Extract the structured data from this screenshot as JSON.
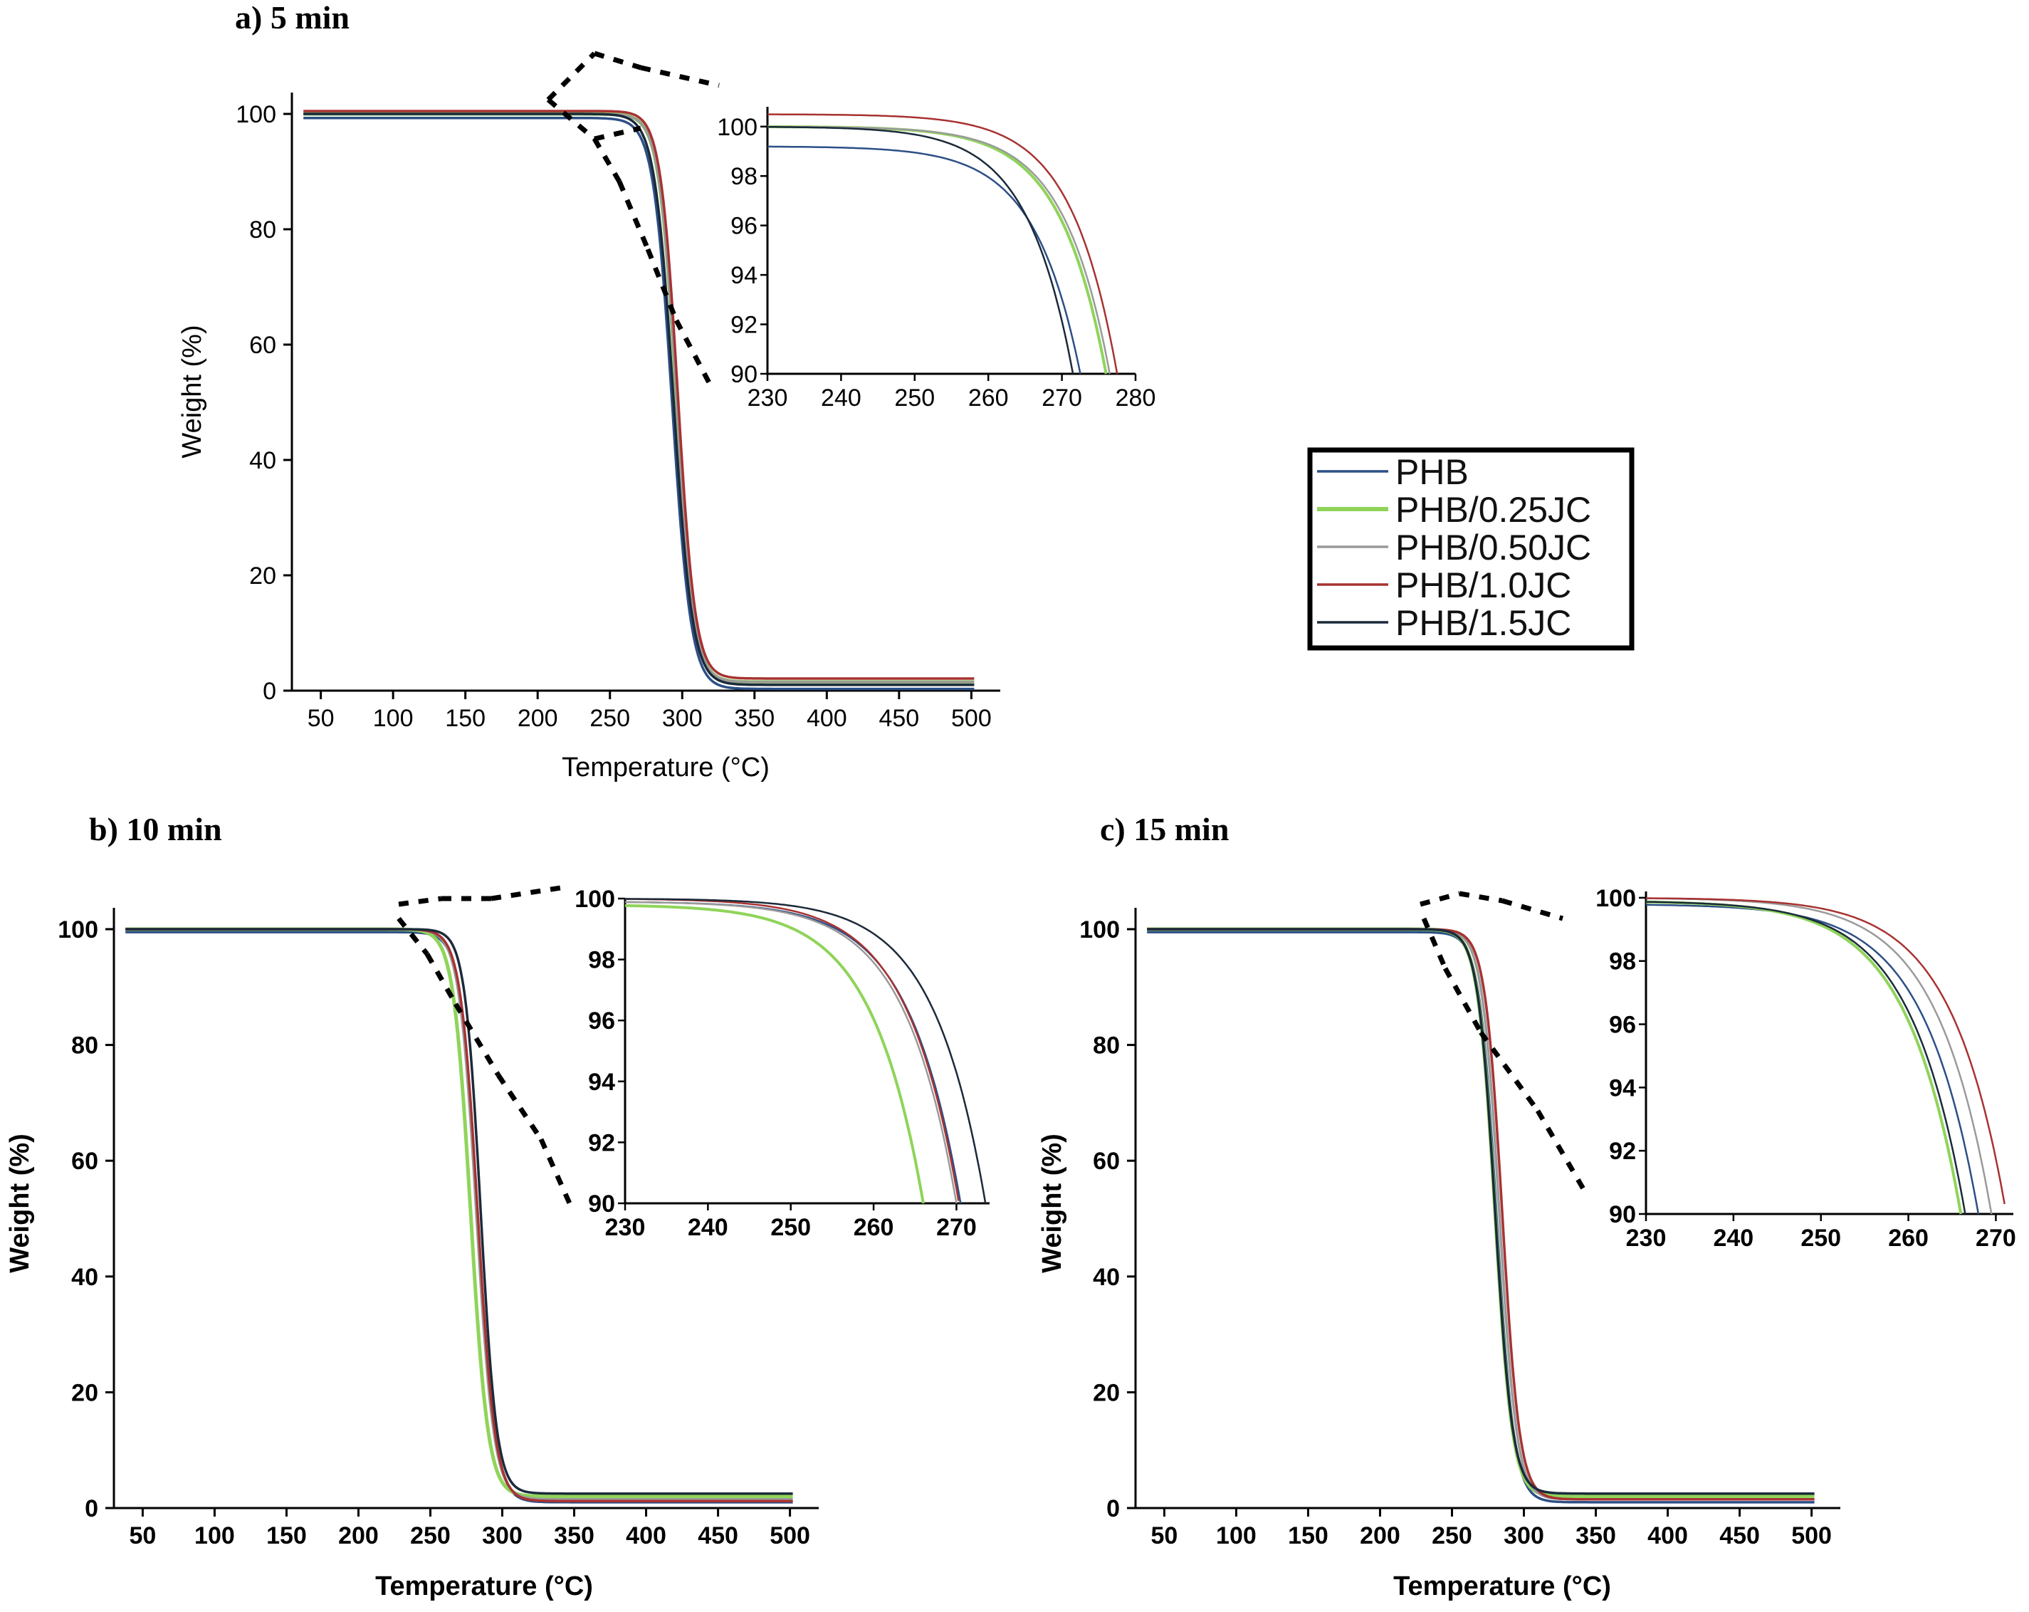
{
  "legend": {
    "items": [
      {
        "label": "PHB",
        "color": "#2c4f86"
      },
      {
        "label": "PHB/0.25JC",
        "color": "#8fd45a"
      },
      {
        "label": "PHB/0.50JC",
        "color": "#9a9a9a"
      },
      {
        "label": "PHB/1.0JC",
        "color": "#a83232"
      },
      {
        "label": "PHB/1.5JC",
        "color": "#1b2a3a"
      }
    ]
  },
  "chart_data": [
    {
      "id": "a",
      "type": "line",
      "title": "a)  5 min",
      "xlabel": "Temperature (°C)",
      "ylabel": "Weight (%)",
      "xlim": [
        30,
        520
      ],
      "ylim": [
        0,
        100
      ],
      "xticks": [
        50,
        100,
        150,
        200,
        250,
        300,
        350,
        400,
        450,
        500
      ],
      "yticks": [
        0,
        20,
        40,
        60,
        80,
        100
      ],
      "series": [
        {
          "name": "PHB",
          "onset": 262,
          "t50": 293,
          "width": 6.5,
          "plateau": 99.3,
          "residue": 0.3
        },
        {
          "name": "PHB/0.25JC",
          "onset": 266,
          "t50": 296,
          "width": 6.0,
          "plateau": 100.0,
          "residue": 1.5
        },
        {
          "name": "PHB/0.50JC",
          "onset": 266,
          "t50": 296,
          "width": 6.0,
          "plateau": 100.0,
          "residue": 1.5
        },
        {
          "name": "PHB/1.0JC",
          "onset": 268,
          "t50": 297,
          "width": 6.0,
          "plateau": 100.5,
          "residue": 2.1
        },
        {
          "name": "PHB/1.5JC",
          "onset": 263,
          "t50": 294,
          "width": 6.5,
          "plateau": 100.0,
          "residue": 1.0
        }
      ],
      "inset": {
        "xlim": [
          230,
          280
        ],
        "ylim": [
          90,
          100.8
        ],
        "xticks": [
          230,
          240,
          250,
          260,
          270,
          280
        ],
        "yticks": [
          90,
          92,
          94,
          96,
          98,
          100
        ],
        "series": [
          {
            "name": "PHB",
            "plateau": 99.2,
            "x90": 272.5
          },
          {
            "name": "PHB/0.25JC",
            "plateau": 100.0,
            "x90": 276.0
          },
          {
            "name": "PHB/0.50JC",
            "plateau": 100.0,
            "x90": 276.5
          },
          {
            "name": "PHB/1.0JC",
            "plateau": 100.5,
            "x90": 277.5
          },
          {
            "name": "PHB/1.5JC",
            "plateau": 100.0,
            "x90": 271.5
          }
        ]
      }
    },
    {
      "id": "b",
      "type": "line",
      "title": "b)  10 min",
      "xlabel": "Temperature (°C)",
      "ylabel": "Weight  (%)",
      "xlim": [
        30,
        520
      ],
      "ylim": [
        0,
        100
      ],
      "xticks": [
        50,
        100,
        150,
        200,
        250,
        300,
        350,
        400,
        450,
        500
      ],
      "yticks": [
        0,
        20,
        40,
        60,
        80,
        100
      ],
      "series": [
        {
          "name": "PHB",
          "onset": 258,
          "t50": 283,
          "width": 6.0,
          "plateau": 99.5,
          "residue": 1.0
        },
        {
          "name": "PHB/0.25JC",
          "onset": 252,
          "t50": 278,
          "width": 6.0,
          "plateau": 100.0,
          "residue": 2.0
        },
        {
          "name": "PHB/0.50JC",
          "onset": 256,
          "t50": 282,
          "width": 6.0,
          "plateau": 100.0,
          "residue": 1.5
        },
        {
          "name": "PHB/1.0JC",
          "onset": 257,
          "t50": 283,
          "width": 6.0,
          "plateau": 100.0,
          "residue": 1.2
        },
        {
          "name": "PHB/1.5JC",
          "onset": 263,
          "t50": 285,
          "width": 5.5,
          "plateau": 100.0,
          "residue": 2.5
        }
      ],
      "inset": {
        "xlim": [
          230,
          274
        ],
        "ylim": [
          90,
          100
        ],
        "xticks": [
          230,
          240,
          250,
          260,
          270
        ],
        "yticks": [
          90,
          92,
          94,
          96,
          98,
          100
        ],
        "series": [
          {
            "name": "PHB",
            "plateau": 99.9,
            "x90": 270.5
          },
          {
            "name": "PHB/0.25JC",
            "plateau": 99.8,
            "x90": 266.0
          },
          {
            "name": "PHB/0.50JC",
            "plateau": 99.9,
            "x90": 270.0
          },
          {
            "name": "PHB/1.0JC",
            "plateau": 100.0,
            "x90": 270.3
          },
          {
            "name": "PHB/1.5JC",
            "plateau": 100.0,
            "x90": 273.5
          }
        ]
      }
    },
    {
      "id": "c",
      "type": "line",
      "title": "c)  15 min",
      "xlabel": "Temperature (°C)",
      "ylabel": "Weight (%)",
      "xlim": [
        30,
        520
      ],
      "ylim": [
        0,
        100
      ],
      "xticks": [
        50,
        100,
        150,
        200,
        250,
        300,
        350,
        400,
        450,
        500
      ],
      "yticks": [
        0,
        20,
        40,
        60,
        80,
        100
      ],
      "series": [
        {
          "name": "PHB",
          "onset": 256,
          "t50": 281,
          "width": 6.0,
          "plateau": 99.5,
          "residue": 1.0
        },
        {
          "name": "PHB/0.25JC",
          "onset": 254,
          "t50": 280,
          "width": 6.0,
          "plateau": 100.0,
          "residue": 2.0
        },
        {
          "name": "PHB/0.50JC",
          "onset": 257,
          "t50": 283,
          "width": 6.0,
          "plateau": 100.0,
          "residue": 1.5
        },
        {
          "name": "PHB/1.0JC",
          "onset": 260,
          "t50": 285,
          "width": 6.0,
          "plateau": 100.0,
          "residue": 1.5
        },
        {
          "name": "PHB/1.5JC",
          "onset": 254,
          "t50": 280,
          "width": 6.0,
          "plateau": 100.0,
          "residue": 2.5
        }
      ],
      "inset": {
        "xlim": [
          230,
          272
        ],
        "ylim": [
          90,
          100.2
        ],
        "xticks": [
          230,
          240,
          250,
          260,
          270
        ],
        "yticks": [
          90,
          92,
          94,
          96,
          98,
          100
        ],
        "series": [
          {
            "name": "PHB",
            "plateau": 99.8,
            "x90": 268.0
          },
          {
            "name": "PHB/0.25JC",
            "plateau": 99.9,
            "x90": 266.0
          },
          {
            "name": "PHB/0.50JC",
            "plateau": 100.0,
            "x90": 269.5
          },
          {
            "name": "PHB/1.0JC",
            "plateau": 100.0,
            "x90": 271.2
          },
          {
            "name": "PHB/1.5JC",
            "plateau": 99.9,
            "x90": 266.5
          }
        ]
      }
    }
  ]
}
